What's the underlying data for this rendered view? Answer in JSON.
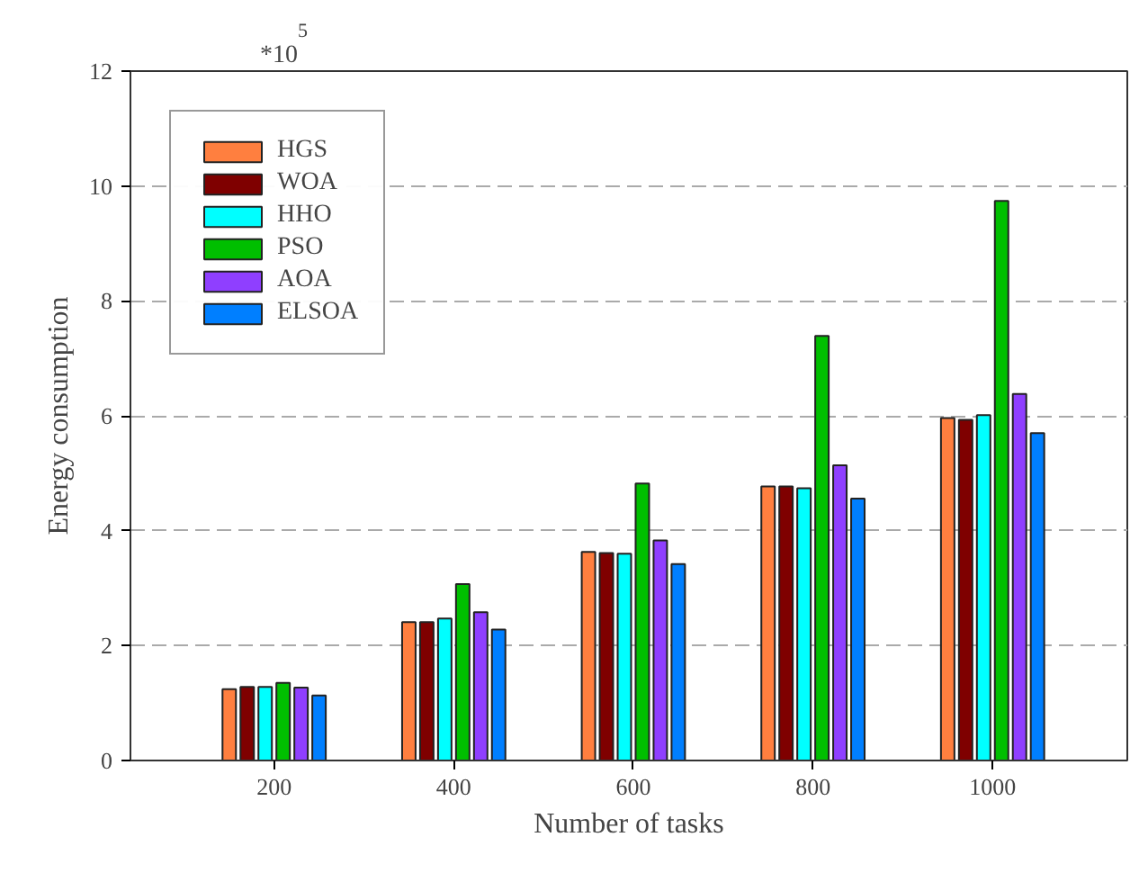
{
  "chart_data": {
    "type": "bar",
    "xlabel": "Number of tasks",
    "ylabel": "Energy consumption",
    "annotations": [
      "*10$^{5}$"
    ],
    "categories": [
      "200",
      "400",
      "600",
      "800",
      "1000"
    ],
    "series": [
      {
        "name": "HGS",
        "color": "#ff7f3f",
        "values": [
          1.24,
          2.41,
          3.63,
          4.77,
          5.96
        ]
      },
      {
        "name": "WOA",
        "color": "#7f0000",
        "values": [
          1.28,
          2.41,
          3.61,
          4.77,
          5.93
        ]
      },
      {
        "name": "HHO",
        "color": "#00ffff",
        "values": [
          1.28,
          2.47,
          3.6,
          4.74,
          6.01
        ]
      },
      {
        "name": "PSO",
        "color": "#00bf00",
        "values": [
          1.35,
          3.07,
          4.82,
          7.39,
          9.74
        ]
      },
      {
        "name": "AOA",
        "color": "#8f3fff",
        "values": [
          1.27,
          2.58,
          3.83,
          5.14,
          6.38
        ]
      },
      {
        "name": "ELSOA",
        "color": "#007fff",
        "values": [
          1.13,
          2.28,
          3.42,
          4.56,
          5.7
        ]
      }
    ],
    "ylim": [
      0,
      12
    ],
    "yticks": [
      0,
      2,
      4,
      6,
      8,
      10,
      12
    ],
    "grid": "y",
    "legend": "top left"
  }
}
